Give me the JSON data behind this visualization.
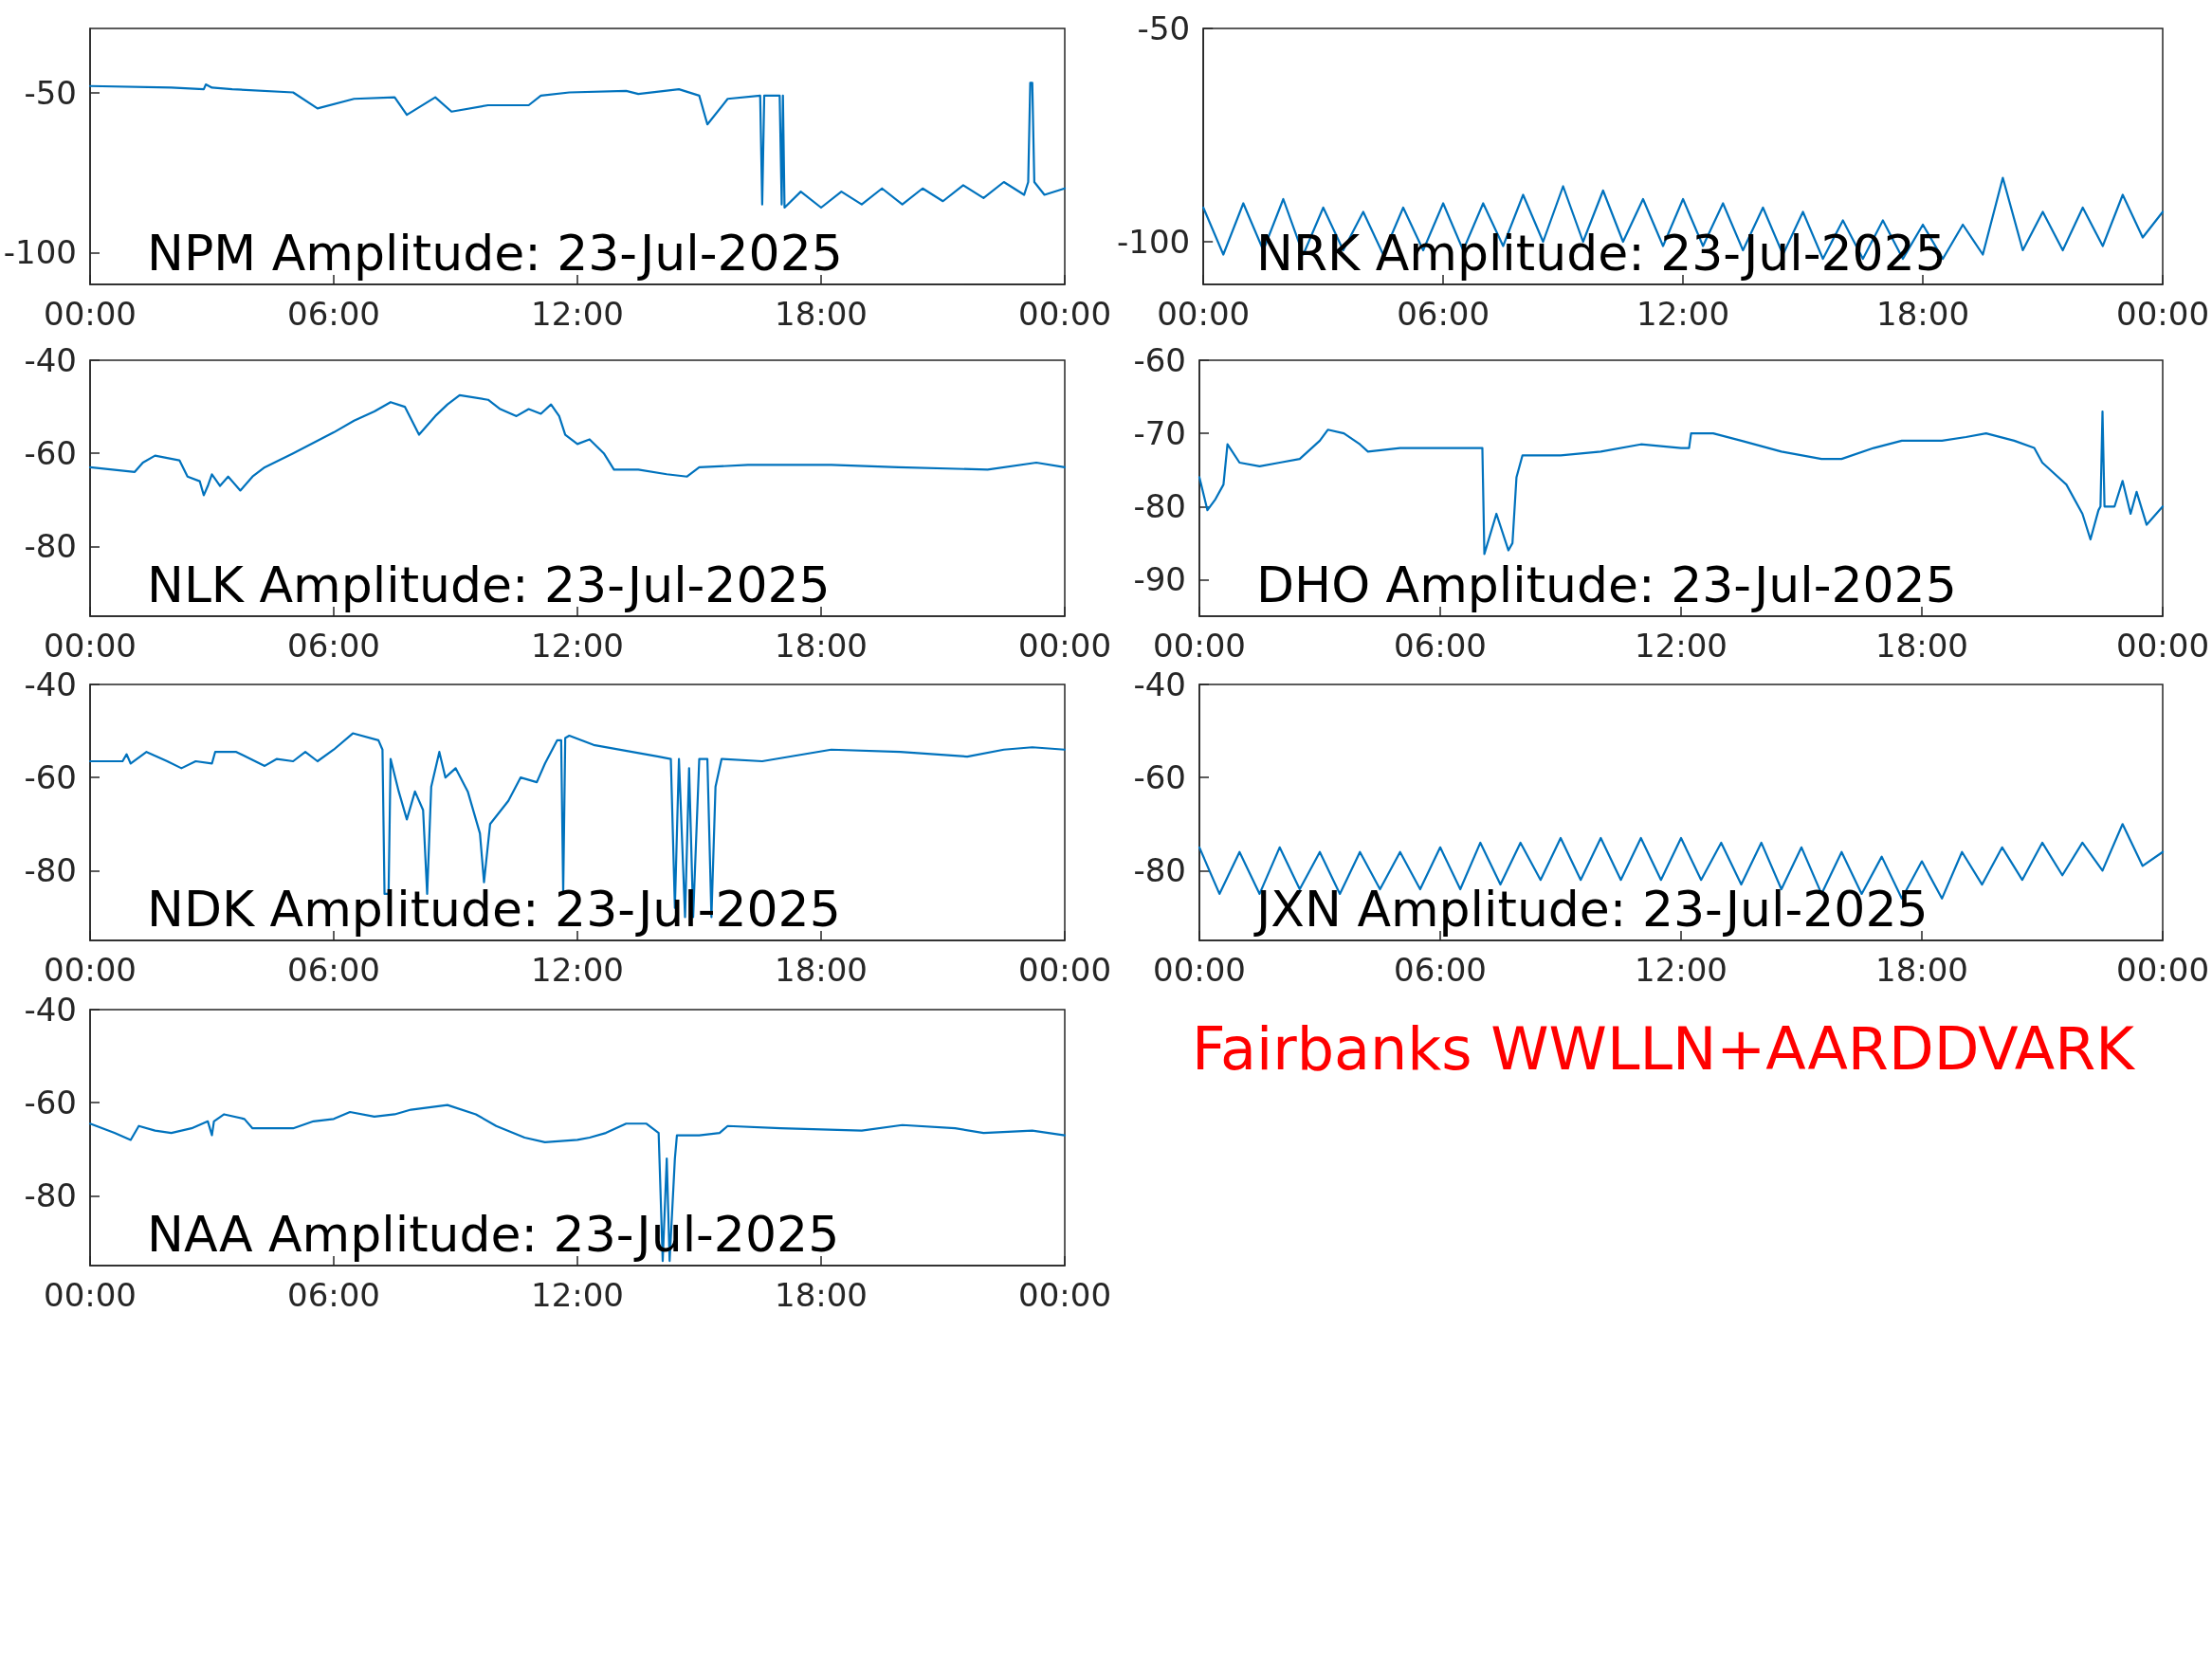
{
  "chart_data": [
    {
      "type": "line",
      "title": "NPM Amplitude: 23-Jul-2025",
      "xlim": [
        0,
        24
      ],
      "xticks": [
        {
          "value": 0,
          "label": "00:00"
        },
        {
          "value": 6,
          "label": "06:00"
        },
        {
          "value": 12,
          "label": "12:00"
        },
        {
          "value": 18,
          "label": "18:00"
        },
        {
          "value": 24,
          "label": "00:00"
        }
      ],
      "ylim": [
        -110,
        -30
      ],
      "yticks": [
        -100,
        -50
      ],
      "series": [
        {
          "color": "#0072bd",
          "x": [
            0,
            2,
            2.8,
            2.85,
            3,
            3.5,
            5,
            5.6,
            6.5,
            7.5,
            7.8,
            8.5,
            8.9,
            9.8,
            10.8,
            11.1,
            11.8,
            13.2,
            13.5,
            14.5,
            15,
            15.2,
            15.7,
            16.5,
            16.55,
            16.6,
            16.98,
            17.03,
            17.06,
            17.1,
            17.5,
            18,
            18.5,
            19,
            19.5,
            20,
            20.5,
            21,
            21.5,
            22,
            22.5,
            23,
            23.1,
            23.15,
            23.2,
            23.25,
            23.5,
            24
          ],
          "values": [
            -48,
            -48.5,
            -49,
            -47.5,
            -48.5,
            -49,
            -50,
            -55,
            -52,
            -51.5,
            -57,
            -51.5,
            -56,
            -54,
            -54,
            -51,
            -50,
            -49.5,
            -50.5,
            -49,
            -51,
            -60,
            -52,
            -51,
            -85,
            -51,
            -51,
            -85,
            -51,
            -86,
            -81,
            -86,
            -81,
            -85,
            -80,
            -85,
            -80,
            -84,
            -79,
            -83,
            -78,
            -82,
            -78,
            -47,
            -47,
            -78,
            -82,
            -80
          ]
        }
      ]
    },
    {
      "type": "line",
      "title": "NRK Amplitude: 23-Jul-2025",
      "xlim": [
        0,
        24
      ],
      "xticks": [
        {
          "value": 0,
          "label": "00:00"
        },
        {
          "value": 6,
          "label": "06:00"
        },
        {
          "value": 12,
          "label": "12:00"
        },
        {
          "value": 18,
          "label": "18:00"
        },
        {
          "value": 24,
          "label": "00:00"
        }
      ],
      "ylim": [
        -110,
        -50
      ],
      "yticks": [
        -100,
        -50
      ],
      "series": [
        {
          "color": "#0072bd",
          "x": [
            0,
            0.5,
            1,
            1.5,
            2,
            2.5,
            3,
            3.5,
            4,
            4.5,
            5,
            5.5,
            6,
            6.5,
            7,
            7.5,
            8,
            8.5,
            9,
            9.5,
            10,
            10.5,
            11,
            11.5,
            12,
            12.5,
            13,
            13.5,
            14,
            14.5,
            15,
            15.5,
            16,
            16.5,
            17,
            17.5,
            18,
            18.5,
            19,
            19.5,
            20,
            20.5,
            21,
            21.5,
            22,
            22.5,
            23,
            23.5,
            24
          ],
          "values": [
            -92,
            -103,
            -91,
            -102,
            -90,
            -103,
            -92,
            -102,
            -93,
            -103,
            -92,
            -102,
            -91,
            -102,
            -91,
            -101,
            -89,
            -100,
            -87,
            -100,
            -88,
            -100,
            -90,
            -101,
            -90,
            -101,
            -91,
            -102,
            -92,
            -103,
            -93,
            -104,
            -95,
            -104,
            -95,
            -104,
            -96,
            -104,
            -96,
            -103,
            -85,
            -102,
            -93,
            -102,
            -92,
            -101,
            -89,
            -99,
            -93
          ]
        }
      ]
    },
    {
      "type": "line",
      "title": "NLK Amplitude: 23-Jul-2025",
      "xlim": [
        0,
        24
      ],
      "xticks": [
        {
          "value": 0,
          "label": "00:00"
        },
        {
          "value": 6,
          "label": "06:00"
        },
        {
          "value": 12,
          "label": "12:00"
        },
        {
          "value": 18,
          "label": "18:00"
        },
        {
          "value": 24,
          "label": "00:00"
        }
      ],
      "ylim": [
        -95,
        -40
      ],
      "yticks": [
        -80,
        -60,
        -40
      ],
      "series": [
        {
          "color": "#0072bd",
          "x": [
            0,
            1.1,
            1.3,
            1.6,
            2.2,
            2.4,
            2.7,
            2.8,
            2.9,
            3,
            3.2,
            3.4,
            3.7,
            4,
            4.3,
            5,
            6,
            6.5,
            7,
            7.4,
            7.75,
            8.1,
            8.5,
            8.8,
            9.1,
            9.8,
            10.1,
            10.5,
            10.8,
            11.1,
            11.35,
            11.55,
            11.7,
            12,
            12.3,
            12.65,
            12.9,
            13.5,
            14.2,
            14.7,
            15,
            16.2,
            18.25,
            19.9,
            22.1,
            23.3,
            24
          ],
          "values": [
            -63,
            -64,
            -62,
            -60.5,
            -61.5,
            -65,
            -66,
            -69,
            -67,
            -64.5,
            -67,
            -65,
            -68,
            -65,
            -63,
            -60,
            -55.5,
            -53,
            -51,
            -49,
            -50,
            -56,
            -52,
            -49.5,
            -47.5,
            -48.5,
            -50.5,
            -52,
            -50.5,
            -51.5,
            -49.5,
            -52,
            -56,
            -58,
            -57,
            -60,
            -63.5,
            -63.5,
            -64.5,
            -65,
            -63,
            -62.5,
            -62.5,
            -63,
            -63.5,
            -62,
            -63
          ]
        }
      ]
    },
    {
      "type": "line",
      "title": "DHO Amplitude: 23-Jul-2025",
      "xlim": [
        0,
        24
      ],
      "xticks": [
        {
          "value": 0,
          "label": "00:00"
        },
        {
          "value": 6,
          "label": "06:00"
        },
        {
          "value": 12,
          "label": "12:00"
        },
        {
          "value": 18,
          "label": "18:00"
        },
        {
          "value": 24,
          "label": "00:00"
        }
      ],
      "ylim": [
        -95,
        -60
      ],
      "yticks": [
        -90,
        -80,
        -70,
        -60
      ],
      "series": [
        {
          "color": "#0072bd",
          "x": [
            0,
            0.2,
            0.4,
            0.6,
            0.7,
            1,
            1.5,
            2,
            2.5,
            3,
            3.2,
            3.6,
            4,
            4.2,
            5,
            6,
            7,
            7.05,
            7.1,
            7.4,
            7.7,
            7.8,
            7.9,
            8.05,
            9,
            10,
            11,
            12,
            12.2,
            12.25,
            12.8,
            13.5,
            14.5,
            15.5,
            16,
            16.8,
            17.5,
            18.5,
            19.1,
            19.6,
            20.3,
            20.8,
            21,
            21.6,
            22,
            22.2,
            22.4,
            22.45,
            22.5,
            22.55,
            22.8,
            23,
            23.2,
            23.35,
            23.6,
            24
          ],
          "values": [
            -76,
            -80.5,
            -79,
            -77,
            -71.5,
            -74,
            -74.5,
            -74,
            -73.5,
            -71,
            -69.5,
            -70,
            -71.5,
            -72.5,
            -72,
            -72,
            -72,
            -72,
            -86.5,
            -81,
            -86,
            -85,
            -76,
            -73,
            -73,
            -72.5,
            -71.5,
            -72,
            -72,
            -70,
            -70,
            -71,
            -72.5,
            -73.5,
            -73.5,
            -72,
            -71,
            -71,
            -70.5,
            -70,
            -71,
            -72,
            -74,
            -77,
            -81,
            -84.5,
            -80.5,
            -80,
            -67,
            -80,
            -80,
            -76.5,
            -81,
            -78,
            -82.5,
            -80
          ]
        }
      ]
    },
    {
      "type": "line",
      "title": "NDK Amplitude: 23-Jul-2025",
      "xlim": [
        0,
        24
      ],
      "xticks": [
        {
          "value": 0,
          "label": "00:00"
        },
        {
          "value": 6,
          "label": "06:00"
        },
        {
          "value": 12,
          "label": "12:00"
        },
        {
          "value": 18,
          "label": "18:00"
        },
        {
          "value": 24,
          "label": "00:00"
        }
      ],
      "ylim": [
        -95,
        -40
      ],
      "yticks": [
        -80,
        -60,
        -40
      ],
      "series": [
        {
          "color": "#0072bd",
          "x": [
            0,
            0.8,
            0.9,
            1,
            1.39,
            1.9,
            2.25,
            2.6,
            3,
            3.08,
            3.6,
            4.3,
            4.6,
            5,
            5.3,
            5.6,
            6,
            6.47,
            7.1,
            7.2,
            7.25,
            7.35,
            7.4,
            7.6,
            7.8,
            8,
            8.2,
            8.3,
            8.4,
            8.6,
            8.75,
            9,
            9.3,
            9.6,
            9.7,
            9.85,
            10.3,
            10.6,
            11,
            11.2,
            11.5,
            11.6,
            11.65,
            11.7,
            11.8,
            12.4,
            14,
            14.3,
            14.4,
            14.5,
            14.65,
            14.75,
            14.85,
            15,
            15.2,
            15.3,
            15.4,
            15.55,
            16.55,
            18.25,
            19.95,
            21.6,
            22.5,
            23.2,
            24
          ],
          "values": [
            -56.5,
            -56.5,
            -55,
            -57,
            -54.5,
            -56.5,
            -58,
            -56.5,
            -57,
            -54.5,
            -54.5,
            -57.5,
            -56,
            -56.5,
            -54.5,
            -56.5,
            -54,
            -50.5,
            -52,
            -54,
            -85,
            -85,
            -56,
            -63,
            -69,
            -63,
            -67,
            -85,
            -62,
            -54.5,
            -60,
            -58,
            -63,
            -72,
            -82.5,
            -70,
            -65,
            -60,
            -61,
            -57,
            -52,
            -52,
            -85,
            -51.5,
            -51,
            -53,
            -55.5,
            -56,
            -88,
            -56,
            -90,
            -58,
            -90,
            -56,
            -56,
            -90,
            -62,
            -56,
            -56.5,
            -54,
            -54.5,
            -55.5,
            -54,
            -53.5,
            -54
          ]
        }
      ]
    },
    {
      "type": "line",
      "title": "JXN Amplitude: 23-Jul-2025",
      "xlim": [
        0,
        24
      ],
      "xticks": [
        {
          "value": 0,
          "label": "00:00"
        },
        {
          "value": 6,
          "label": "06:00"
        },
        {
          "value": 12,
          "label": "12:00"
        },
        {
          "value": 18,
          "label": "18:00"
        },
        {
          "value": 24,
          "label": "00:00"
        }
      ],
      "ylim": [
        -95,
        -40
      ],
      "yticks": [
        -80,
        -60,
        -40
      ],
      "series": [
        {
          "color": "#0072bd",
          "x": [
            0,
            0.5,
            1,
            1.5,
            2,
            2.5,
            3,
            3.5,
            4,
            4.5,
            5,
            5.5,
            6,
            6.5,
            7,
            7.5,
            8,
            8.5,
            9,
            9.5,
            10,
            10.5,
            11,
            11.5,
            12,
            12.5,
            13,
            13.5,
            14,
            14.5,
            15,
            15.5,
            16,
            16.5,
            17,
            17.5,
            18,
            18.5,
            19,
            19.5,
            20,
            20.5,
            21,
            21.5,
            22,
            22.5,
            23,
            23.5,
            24
          ],
          "values": [
            -75,
            -85,
            -76,
            -85,
            -75,
            -84,
            -76,
            -85,
            -76,
            -84,
            -76,
            -84,
            -75,
            -84,
            -74,
            -83,
            -74,
            -82,
            -73,
            -82,
            -73,
            -82,
            -73,
            -82,
            -73,
            -82,
            -74,
            -83,
            -74,
            -84,
            -75,
            -85,
            -76,
            -85,
            -77,
            -86,
            -78,
            -86,
            -76,
            -83,
            -75,
            -82,
            -74,
            -81,
            -74,
            -80,
            -70,
            -79,
            -76
          ]
        }
      ]
    },
    {
      "type": "line",
      "title": "NAA Amplitude: 23-Jul-2025",
      "xlim": [
        0,
        24
      ],
      "xticks": [
        {
          "value": 0,
          "label": "00:00"
        },
        {
          "value": 6,
          "label": "06:00"
        },
        {
          "value": 12,
          "label": "12:00"
        },
        {
          "value": 18,
          "label": "18:00"
        },
        {
          "value": 24,
          "label": "00:00"
        }
      ],
      "ylim": [
        -95,
        -40
      ],
      "yticks": [
        -80,
        -60,
        -40
      ],
      "series": [
        {
          "color": "#0072bd",
          "x": [
            0,
            0.6,
            1,
            1.2,
            1.6,
            2,
            2.5,
            2.9,
            3,
            3.05,
            3.3,
            3.8,
            4,
            5,
            5.5,
            6,
            6.4,
            7,
            7.5,
            7.9,
            8.8,
            9.5,
            10,
            10.7,
            11.2,
            12,
            12.3,
            12.7,
            13.2,
            13.7,
            14,
            14.1,
            14.2,
            14.27,
            14.4,
            14.45,
            15,
            15.5,
            15.7,
            17,
            19,
            20,
            21.3,
            22,
            23.2,
            24
          ],
          "values": [
            -64.5,
            -66.5,
            -68,
            -65,
            -66,
            -66.5,
            -65.5,
            -64,
            -67,
            -64,
            -62.5,
            -63.5,
            -65.5,
            -65.5,
            -64,
            -63.5,
            -62,
            -63,
            -62.5,
            -61.5,
            -60.5,
            -62.5,
            -65,
            -67.5,
            -68.5,
            -68,
            -67.5,
            -66.5,
            -64.5,
            -64.5,
            -66.5,
            -94,
            -72,
            -94,
            -72,
            -67,
            -67,
            -66.5,
            -65,
            -65.5,
            -66,
            -64.8,
            -65.5,
            -66.5,
            -66,
            -67
          ]
        }
      ]
    },
    {
      "type": "other",
      "color": "#ff0000",
      "annotations": [
        "Fairbanks WWLLN+AARDDVARK"
      ]
    }
  ]
}
